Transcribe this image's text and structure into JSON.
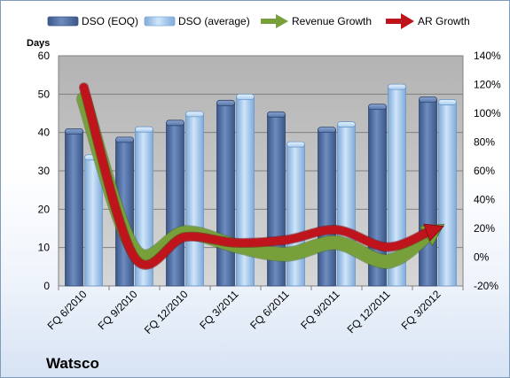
{
  "company": "Watsco",
  "chart_data": {
    "type": "bar",
    "categories": [
      "FQ 6/2010",
      "FQ 9/2010",
      "FQ 12/2010",
      "FQ 3/2011",
      "FQ 6/2011",
      "FQ 9/2011",
      "FQ 12/2011",
      "FQ 3/2012"
    ],
    "ylabel": "Days",
    "ylim": [
      0,
      60
    ],
    "yticks": [
      0,
      10,
      20,
      30,
      40,
      50,
      60
    ],
    "y2lim": [
      -20,
      140
    ],
    "y2ticks": [
      "-20%",
      "0%",
      "20%",
      "40%",
      "60%",
      "80%",
      "100%",
      "120%",
      "140%"
    ],
    "grid": true,
    "legend_position": "top",
    "series": [
      {
        "name": "DSO (EOQ)",
        "type": "bar",
        "axis": "left",
        "color": "#4f6fa5",
        "values": [
          40.3,
          38.1,
          42.5,
          47.7,
          44.7,
          40.7,
          46.7,
          48.6
        ]
      },
      {
        "name": "DSO (average)",
        "type": "bar",
        "axis": "left",
        "color": "#a9cdef",
        "values": [
          33.5,
          40.8,
          44.8,
          49.3,
          36.9,
          42.1,
          51.9,
          47.9
        ]
      },
      {
        "name": "Revenue Growth",
        "type": "line",
        "axis": "right",
        "color": "#77a03b",
        "values": [
          110,
          5,
          17,
          8,
          2,
          10,
          -3,
          20
        ]
      },
      {
        "name": "AR Growth",
        "type": "line",
        "axis": "right",
        "color": "#c0141c",
        "values": [
          118,
          0,
          14,
          10,
          12,
          19,
          7,
          20
        ]
      }
    ]
  }
}
